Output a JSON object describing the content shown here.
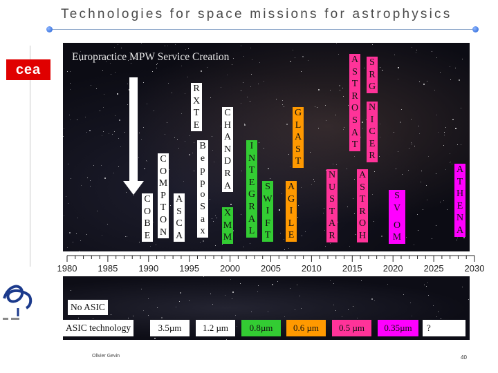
{
  "title": "Technologies for space missions for astrophysics",
  "logo_cea": "cea",
  "sky_label": "Europractice MPW Service Creation",
  "missions": [
    {
      "key": "cobe",
      "name": "COBE",
      "color": "#ffffff"
    },
    {
      "key": "compton",
      "name": "COMPTON",
      "color": "#ffffff"
    },
    {
      "key": "asca",
      "name": "ASCA",
      "color": "#ffffff"
    },
    {
      "key": "rxte",
      "name": "RXTE",
      "color": "#ffffff"
    },
    {
      "key": "beppo",
      "name": "BeppoSax",
      "color": "#ffffff"
    },
    {
      "key": "chandra",
      "name": "CHANDRA",
      "color": "#ffffff"
    },
    {
      "key": "xmm",
      "name": "XMM",
      "color": "#33cc33"
    },
    {
      "key": "integral",
      "name": "INTEGRAL",
      "color": "#33cc33"
    },
    {
      "key": "swift",
      "name": "SWIFT",
      "color": "#33cc33"
    },
    {
      "key": "glast",
      "name": "GLAST",
      "color": "#ff9900"
    },
    {
      "key": "agile",
      "name": "AGILE",
      "color": "#ff9900"
    },
    {
      "key": "astrosat",
      "name": "ASTROSAT",
      "color": "#ff3399"
    },
    {
      "key": "nustar",
      "name": "NUSTAR",
      "color": "#ff3399"
    },
    {
      "key": "srg",
      "name": "SRG",
      "color": "#ff3399"
    },
    {
      "key": "nicer",
      "name": "NICER",
      "color": "#ff3399"
    },
    {
      "key": "astroh",
      "name": "ASTROH",
      "color": "#ff3399"
    },
    {
      "key": "svom",
      "name": "SV OM",
      "color": "#ff00ff"
    },
    {
      "key": "athena",
      "name": "ATHENA",
      "color": "#ff00ff"
    }
  ],
  "timeline": {
    "start": 1980,
    "end": 2030,
    "ticks": [
      "1980",
      "1985",
      "1990",
      "1995",
      "2000",
      "2005",
      "2010",
      "2015",
      "2020",
      "2025",
      "2030"
    ]
  },
  "legend": {
    "no_asic": "No ASIC",
    "asic_tech": "ASIC technology"
  },
  "technologies": [
    {
      "label": "3.5µm",
      "color": "#ffffff"
    },
    {
      "label": "1.2 µm",
      "color": "#ffffff"
    },
    {
      "label": "0.8µm",
      "color": "#33cc33"
    },
    {
      "label": "0.6 µm",
      "color": "#ff9900"
    },
    {
      "label": "0.5 µm",
      "color": "#ff3399"
    },
    {
      "label": "0.35µm",
      "color": "#ff00ff"
    },
    {
      "label": "?",
      "color": "#ffffff"
    }
  ],
  "author": "Olivier Gevin",
  "page_number": "40"
}
